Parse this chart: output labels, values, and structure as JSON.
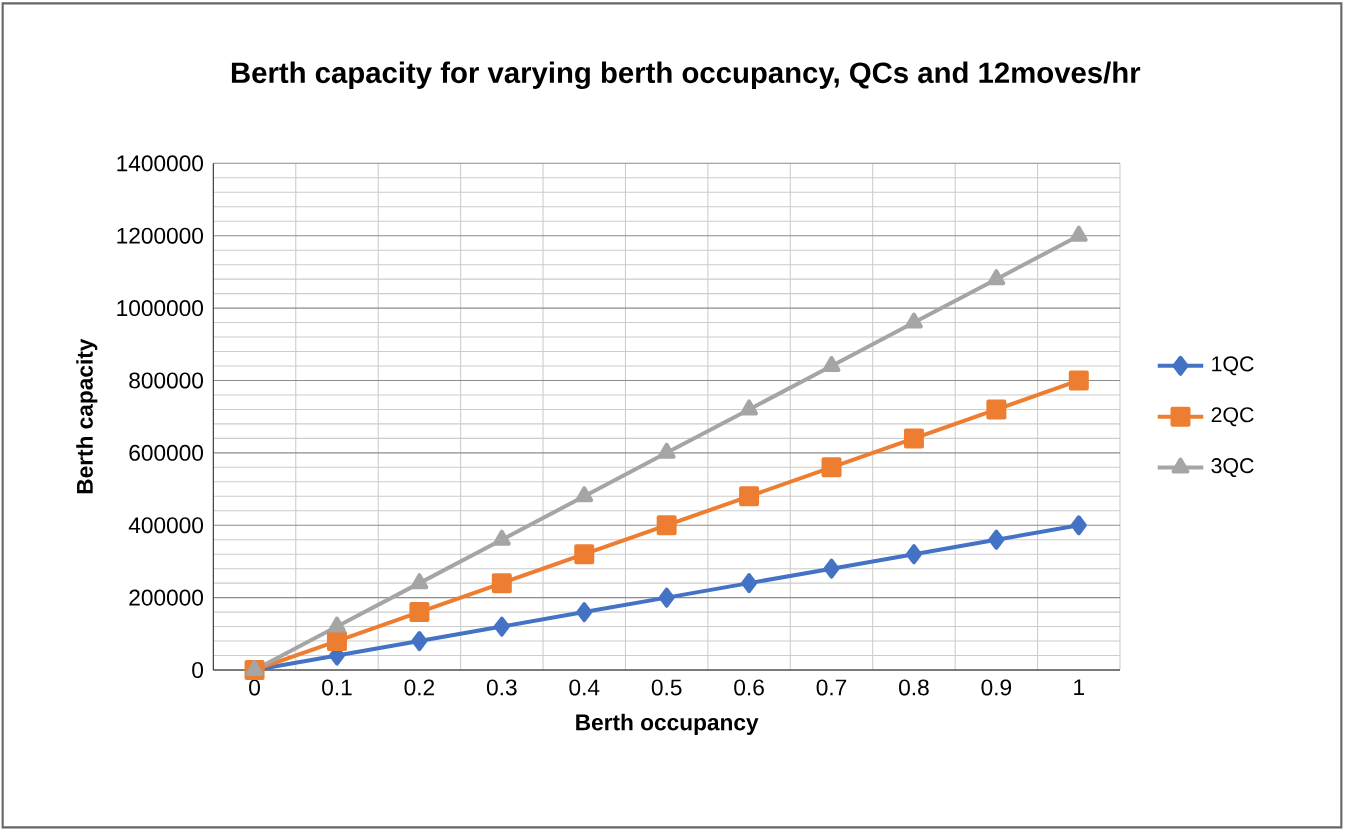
{
  "chart_data": {
    "type": "line",
    "title": "Berth capacity for varying berth occupancy, QCs and 12moves/hr",
    "xlabel": "Berth occupancy",
    "ylabel": "Berth capacity",
    "categories": [
      "0",
      "0.1",
      "0.2",
      "0.3",
      "0.4",
      "0.5",
      "0.6",
      "0.7",
      "0.8",
      "0.9",
      "1"
    ],
    "series": [
      {
        "name": "1QC",
        "color": "#4472c4",
        "marker": "diamond",
        "values": [
          0,
          40000,
          80000,
          120000,
          160000,
          200000,
          240000,
          280000,
          320000,
          360000,
          400000
        ]
      },
      {
        "name": "2QC",
        "color": "#ed7d31",
        "marker": "square",
        "values": [
          0,
          80000,
          160000,
          240000,
          320000,
          400000,
          480000,
          560000,
          640000,
          720000,
          800000
        ]
      },
      {
        "name": "3QC",
        "color": "#a5a5a5",
        "marker": "triangle",
        "values": [
          0,
          120000,
          240000,
          360000,
          480000,
          600000,
          720000,
          840000,
          960000,
          1080000,
          1200000
        ]
      }
    ],
    "ylim": [
      0,
      1400000
    ],
    "yticks": [
      0,
      200000,
      400000,
      600000,
      800000,
      1000000,
      1200000,
      1400000
    ],
    "grid": true,
    "legend": "right",
    "line_style": "solid"
  }
}
